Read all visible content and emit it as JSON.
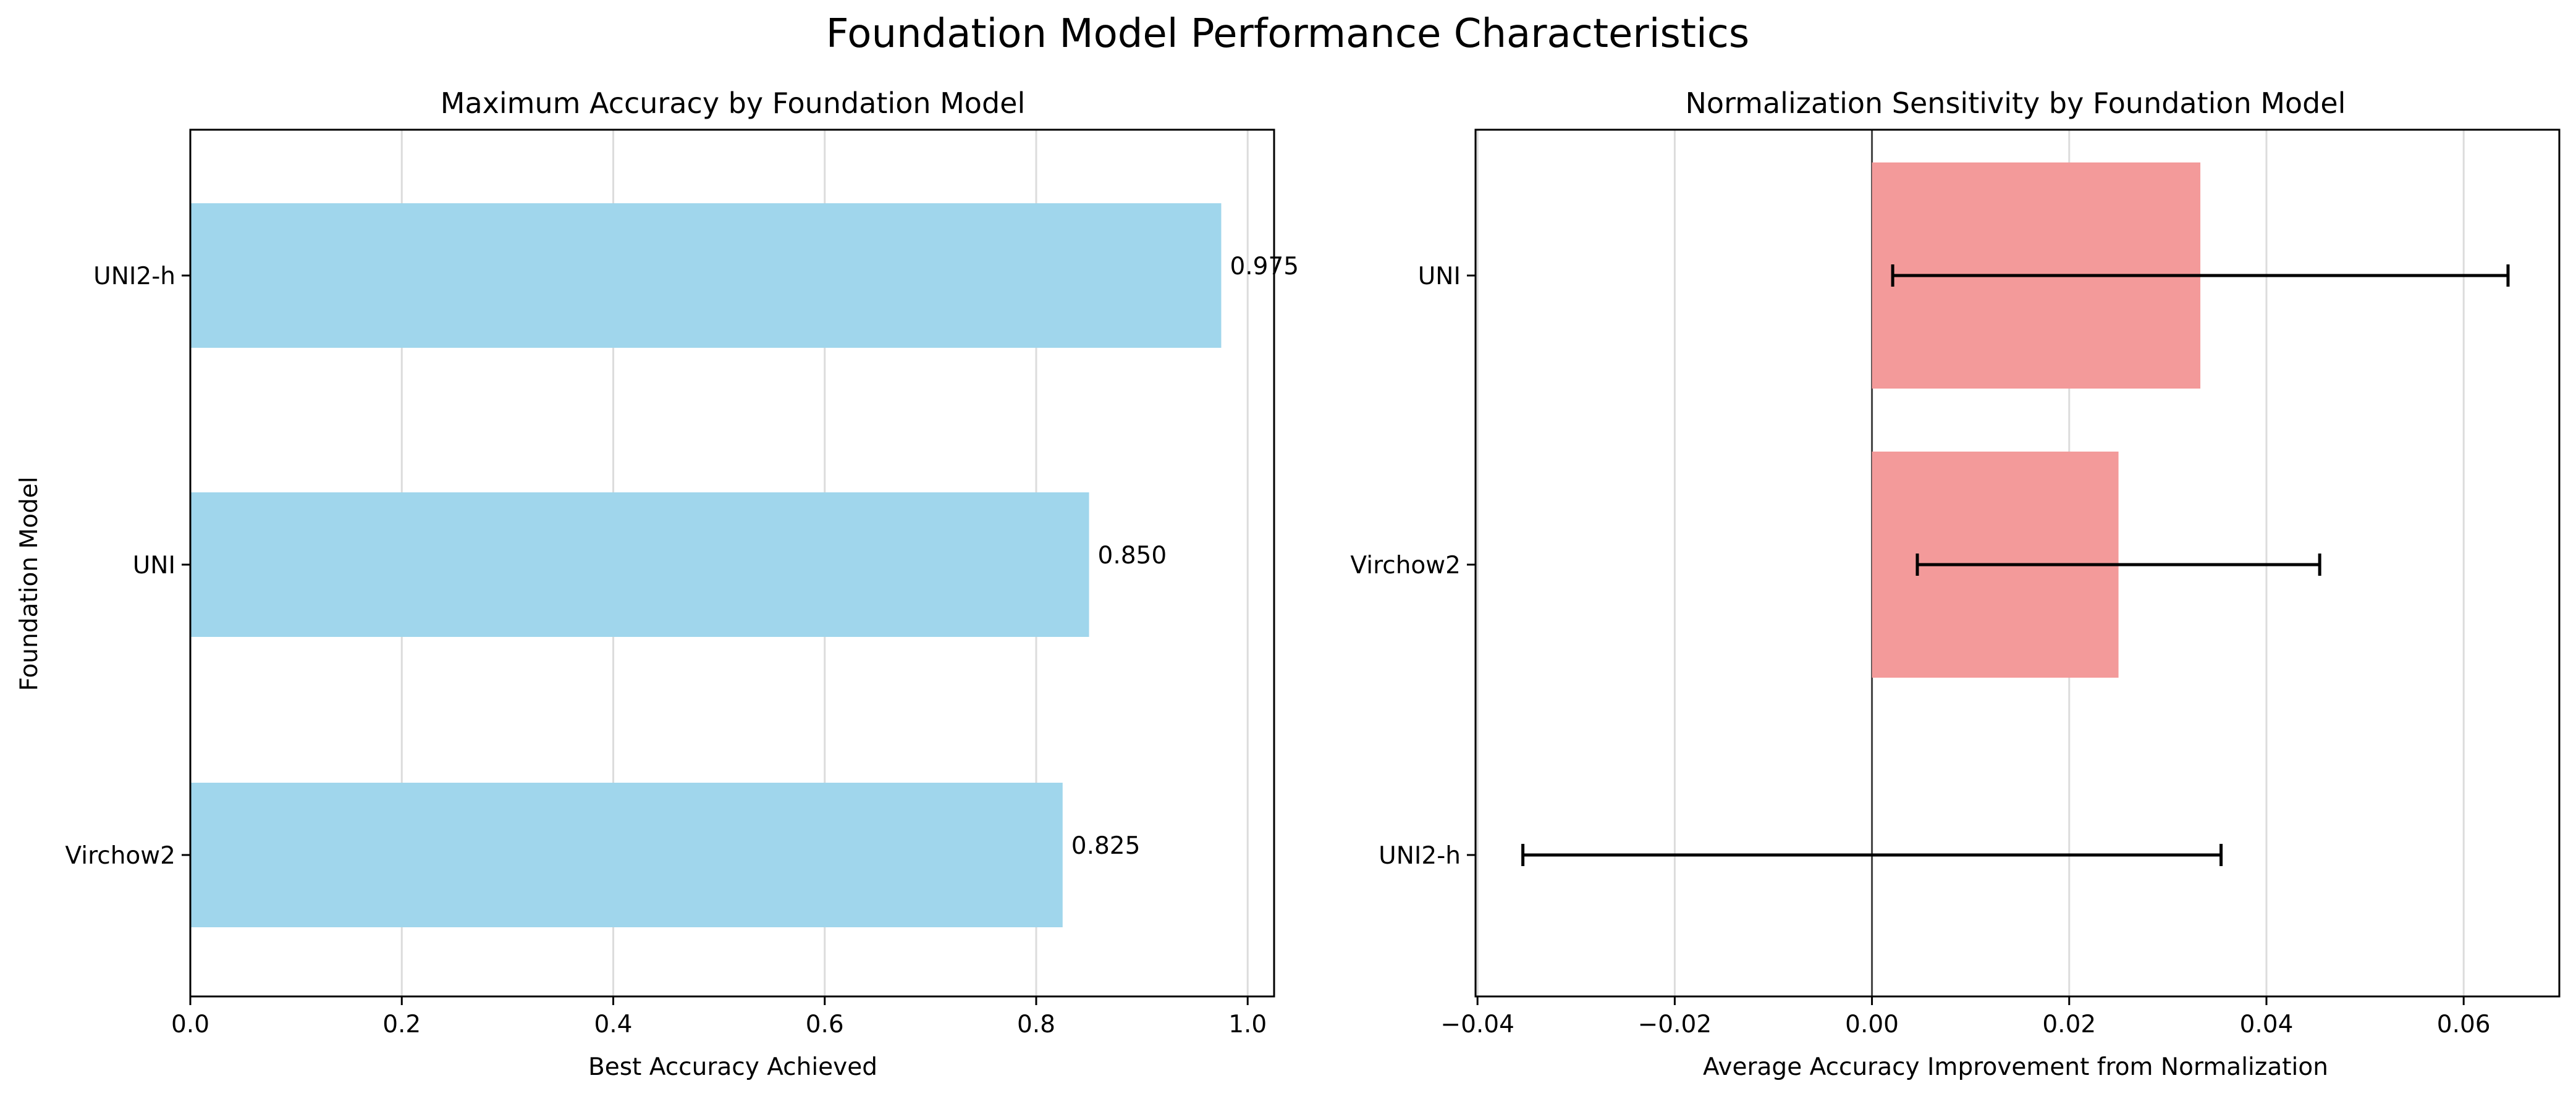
{
  "figure": {
    "title": "Foundation Model Performance Characteristics"
  },
  "chart_data": [
    {
      "type": "bar",
      "orientation": "horizontal",
      "title": "Maximum Accuracy by Foundation Model",
      "xlabel": "Best Accuracy Achieved",
      "ylabel": "Foundation Model",
      "categories": [
        "Virchow2",
        "UNI",
        "UNI2-h"
      ],
      "values": [
        0.825,
        0.85,
        0.975
      ],
      "data_labels": [
        "0.825",
        "0.850",
        "0.975"
      ],
      "xlim": [
        0.0,
        1.025
      ],
      "xticks": [
        0.0,
        0.2,
        0.4,
        0.6,
        0.8,
        1.0
      ],
      "xtick_labels": [
        "0.0",
        "0.2",
        "0.4",
        "0.6",
        "0.8",
        "1.0"
      ],
      "grid": "x",
      "bar_color": "#a0d6ec"
    },
    {
      "type": "bar",
      "orientation": "horizontal",
      "title": "Normalization Sensitivity by Foundation Model",
      "xlabel": "Average Accuracy Improvement from Normalization",
      "ylabel": "",
      "categories": [
        "UNI2-h",
        "Virchow2",
        "UNI"
      ],
      "values": [
        0.0,
        0.025,
        0.0333
      ],
      "error": [
        0.0354,
        0.0204,
        0.0312
      ],
      "xlim": [
        -0.0402,
        0.0697
      ],
      "xticks": [
        -0.04,
        -0.02,
        0.0,
        0.02,
        0.04,
        0.06
      ],
      "xtick_labels": [
        "−0.04",
        "−0.02",
        "0.00",
        "0.02",
        "0.04",
        "0.06"
      ],
      "grid": "x",
      "zero_line": true,
      "bar_color": "#f39a9a"
    }
  ]
}
